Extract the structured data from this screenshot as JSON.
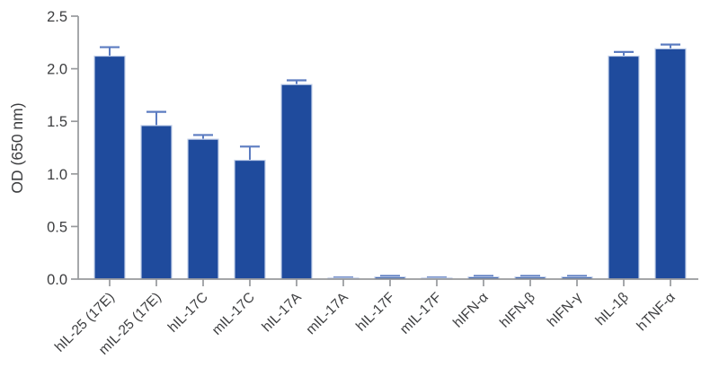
{
  "chart_data": {
    "type": "bar",
    "title": "",
    "xlabel": "",
    "ylabel": "OD (650 nm)",
    "ylim": [
      0,
      2.5
    ],
    "yticks": [
      "0.0",
      "0.5",
      "1.0",
      "1.5",
      "2.0",
      "2.5"
    ],
    "ytick_values": [
      0,
      0.5,
      1.0,
      1.5,
      2.0,
      2.5
    ],
    "grid": false,
    "legend": null,
    "categories": [
      "hIL-25 (17E)",
      "mIL-25 (17E)",
      "hIL-17C",
      "mIL-17C",
      "hIL-17A",
      "mIL-17A",
      "hIL-17F",
      "mIL-17F",
      "hIFN-α",
      "hIFN-β",
      "hIFN-γ",
      "hIL-1β",
      "hTNF-α"
    ],
    "values": [
      2.12,
      1.46,
      1.33,
      1.13,
      1.85,
      0.01,
      0.02,
      0.01,
      0.02,
      0.02,
      0.02,
      2.12,
      2.19
    ],
    "errors": [
      0.085,
      0.13,
      0.04,
      0.13,
      0.04,
      0.005,
      0.01,
      0.005,
      0.01,
      0.01,
      0.01,
      0.04,
      0.04
    ],
    "error_direction": "upper-only",
    "colors": {
      "bar_fill": "#1F4B9D",
      "bar_edge": "#C3D0EA",
      "error_bar": "#5C7CC1",
      "axis_line": "#97999C",
      "text": "#3D3E40"
    }
  }
}
